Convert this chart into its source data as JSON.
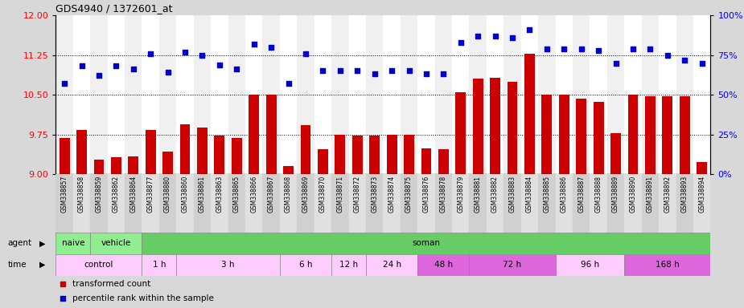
{
  "title": "GDS4940 / 1372601_at",
  "sample_labels": [
    "GSM338857",
    "GSM338858",
    "GSM338859",
    "GSM338862",
    "GSM338864",
    "GSM338877",
    "GSM338880",
    "GSM338860",
    "GSM338861",
    "GSM338863",
    "GSM338865",
    "GSM338866",
    "GSM338867",
    "GSM338868",
    "GSM338869",
    "GSM338870",
    "GSM338871",
    "GSM338872",
    "GSM338873",
    "GSM338874",
    "GSM338875",
    "GSM338876",
    "GSM338878",
    "GSM338879",
    "GSM338881",
    "GSM338882",
    "GSM338883",
    "GSM338884",
    "GSM338885",
    "GSM338886",
    "GSM338887",
    "GSM338888",
    "GSM338889",
    "GSM338890",
    "GSM338891",
    "GSM338892",
    "GSM338893",
    "GSM338894"
  ],
  "bar_values": [
    9.68,
    9.83,
    9.28,
    9.32,
    9.33,
    9.83,
    9.42,
    9.94,
    9.88,
    9.72,
    9.68,
    10.5,
    10.5,
    9.15,
    9.92,
    9.47,
    9.74,
    9.73,
    9.73,
    9.75,
    9.75,
    9.49,
    9.47,
    10.55,
    10.8,
    10.82,
    10.75,
    11.28,
    10.5,
    10.5,
    10.43,
    10.37,
    9.77,
    10.5,
    10.47,
    10.47,
    10.47,
    9.23
  ],
  "percentile_values": [
    57,
    68,
    62,
    68,
    66,
    76,
    64,
    77,
    75,
    69,
    66,
    82,
    80,
    57,
    76,
    65,
    65,
    65,
    63,
    65,
    65,
    63,
    63,
    83,
    87,
    87,
    86,
    91,
    79,
    79,
    79,
    78,
    70,
    79,
    79,
    75,
    72,
    70
  ],
  "ylim_left": [
    9.0,
    12.0
  ],
  "ylim_right": [
    0,
    100
  ],
  "yticks_left": [
    9.0,
    9.75,
    10.5,
    11.25,
    12.0
  ],
  "yticks_right": [
    0,
    25,
    50,
    75,
    100
  ],
  "hlines": [
    9.75,
    10.5,
    11.25
  ],
  "bar_color": "#cc0000",
  "dot_color": "#0000cc",
  "bar_baseline": 9.0,
  "agent_naive_color": "#90ee90",
  "agent_vehicle_color": "#90ee90",
  "agent_soman_color": "#66cc66",
  "time_light_color": "#ffccff",
  "time_dark_color": "#dd66dd",
  "bg_color": "#d8d8d8",
  "plot_bg_color": "#ffffff",
  "agent_groups": [
    {
      "label": "naive",
      "start": 0,
      "end": 2
    },
    {
      "label": "vehicle",
      "start": 2,
      "end": 5
    },
    {
      "label": "soman",
      "start": 5,
      "end": 38
    }
  ],
  "time_groups": [
    {
      "label": "control",
      "start": 0,
      "end": 5,
      "dark": false
    },
    {
      "label": "1 h",
      "start": 5,
      "end": 7,
      "dark": false
    },
    {
      "label": "3 h",
      "start": 7,
      "end": 13,
      "dark": false
    },
    {
      "label": "6 h",
      "start": 13,
      "end": 16,
      "dark": false
    },
    {
      "label": "12 h",
      "start": 16,
      "end": 18,
      "dark": false
    },
    {
      "label": "24 h",
      "start": 18,
      "end": 21,
      "dark": false
    },
    {
      "label": "48 h",
      "start": 21,
      "end": 24,
      "dark": true
    },
    {
      "label": "72 h",
      "start": 24,
      "end": 29,
      "dark": true
    },
    {
      "label": "96 h",
      "start": 29,
      "end": 33,
      "dark": false
    },
    {
      "label": "168 h",
      "start": 33,
      "end": 38,
      "dark": true
    }
  ]
}
